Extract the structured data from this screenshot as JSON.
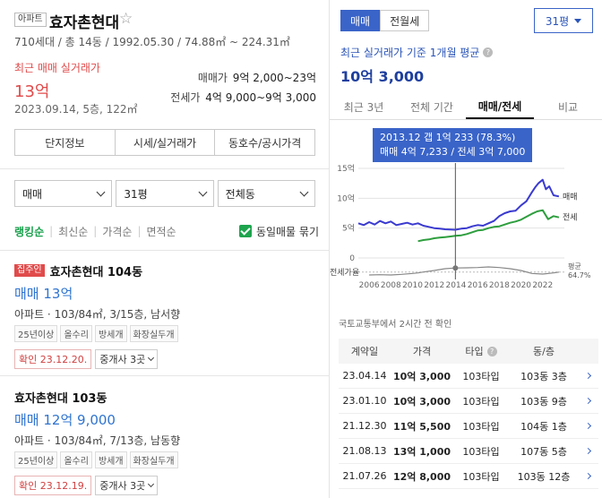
{
  "complex": {
    "badge": "아파트",
    "name": "효자촌현대",
    "info": "710세대 / 총 14동 / 1992.05.30 / 74.88㎡ ~ 224.31㎡",
    "recent_label": "최근 매매 실거래가",
    "recent_price": "13억",
    "recent_date": "2023.09.14, 5층, 122㎡",
    "sale_range_label": "매매가",
    "sale_range": "9억 2,000~23억",
    "jeonse_range_label": "전세가",
    "jeonse_range": "4억 9,000~9억 3,000"
  },
  "tabs": [
    "단지정보",
    "시세/실거래가",
    "동호수/공시가격"
  ],
  "filters": [
    "매매",
    "31평",
    "전체동"
  ],
  "sort": [
    "랭킹순",
    "최신순",
    "가격순",
    "면적순"
  ],
  "same_listing_label": "동일매물 묶기",
  "listings": [
    {
      "owner_tag": "집주인",
      "name": "효자촌현대 104동",
      "price": "매매 13억",
      "spec": "아파트 · 103/84㎡, 3/15층, 남서향",
      "tags": [
        "25년이상",
        "올수리",
        "방세개",
        "화장실두개"
      ],
      "confirm": "확인 23.12.20.",
      "agents": "중개사 3곳"
    },
    {
      "owner_tag": "",
      "name": "효자촌현대 103동",
      "price": "매매 12억 9,000",
      "spec": "아파트 · 103/84㎡, 7/13층, 남동향",
      "tags": [
        "25년이상",
        "올수리",
        "방세개",
        "화장실두개"
      ],
      "confirm": "확인 23.12.19.",
      "agents": "중개사 3곳"
    }
  ],
  "right": {
    "toggle": [
      "매매",
      "전월세"
    ],
    "pyeong": "31평",
    "avg_label": "최근 실거래가 기준 1개월 평균",
    "avg_price": "10억 3,000",
    "period_tabs": [
      "최근 3년",
      "전체 기간",
      "매매/전세",
      "비교"
    ],
    "tooltip_line1": "2013.12  갭 1억 233 (78.3%)",
    "tooltip_line2": "매매 4억 7,233 / 전세 3억 7,000",
    "source": "국토교통부에서 2시간 전 확인",
    "table_headers": [
      "계약일",
      "가격",
      "타입",
      "동/층"
    ],
    "trades": [
      {
        "date": "23.04.14",
        "price": "10억 3,000",
        "type": "103타입",
        "floor": "103동 3층"
      },
      {
        "date": "23.01.10",
        "price": "10억 3,000",
        "type": "103타입",
        "floor": "103동 9층"
      },
      {
        "date": "21.12.30",
        "price": "11억 5,500",
        "type": "103타입",
        "floor": "104동 1층"
      },
      {
        "date": "21.08.13",
        "price": "13억 1,000",
        "type": "103타입",
        "floor": "107동 5층"
      },
      {
        "date": "21.07.26",
        "price": "12억 8,000",
        "type": "103타입",
        "floor": "103동 12층"
      }
    ]
  },
  "chart_data": {
    "type": "line",
    "y_ticks": [
      "15억",
      "10억",
      "5억",
      "0"
    ],
    "ylim": [
      0,
      15
    ],
    "x_ticks": [
      "2006",
      "2008",
      "2010",
      "2012",
      "2014",
      "2016",
      "2018",
      "2020",
      "2022"
    ],
    "xlim": [
      2005.0,
      2024.0
    ],
    "series": [
      {
        "name": "매매",
        "color": "#3a3ad0",
        "x": [
          2005.0,
          2005.5,
          2006.0,
          2006.5,
          2007.0,
          2007.5,
          2008.0,
          2008.5,
          2009.0,
          2009.5,
          2010.0,
          2010.5,
          2011.0,
          2011.5,
          2012.0,
          2012.5,
          2013.0,
          2013.5,
          2013.95,
          2014.5,
          2015.0,
          2015.5,
          2016.0,
          2016.5,
          2017.0,
          2017.5,
          2018.0,
          2018.5,
          2019.0,
          2019.5,
          2020.0,
          2020.5,
          2021.0,
          2021.3,
          2021.6,
          2022.0,
          2022.3,
          2022.6,
          2023.0,
          2023.5
        ],
        "y": [
          5.8,
          5.5,
          6.0,
          5.6,
          6.2,
          5.8,
          6.1,
          5.5,
          5.7,
          5.9,
          5.6,
          5.8,
          5.4,
          5.2,
          5.0,
          4.9,
          4.8,
          4.75,
          4.72,
          4.9,
          5.0,
          5.3,
          5.5,
          5.4,
          5.8,
          6.2,
          7.0,
          7.5,
          7.8,
          7.9,
          8.8,
          9.5,
          11.0,
          11.8,
          12.5,
          13.1,
          11.5,
          12.0,
          10.5,
          10.3
        ]
      },
      {
        "name": "전세",
        "color": "#2e9e3e",
        "x": [
          2010.5,
          2011.0,
          2011.5,
          2012.0,
          2012.5,
          2013.0,
          2013.5,
          2013.95,
          2014.5,
          2015.0,
          2015.5,
          2016.0,
          2016.5,
          2017.0,
          2017.5,
          2018.0,
          2018.5,
          2019.0,
          2019.5,
          2020.0,
          2020.5,
          2021.0,
          2021.5,
          2022.0,
          2022.5,
          2023.0,
          2023.5
        ],
        "y": [
          2.8,
          3.0,
          3.1,
          3.3,
          3.4,
          3.5,
          3.6,
          3.7,
          3.8,
          4.0,
          4.3,
          4.6,
          4.7,
          5.0,
          5.2,
          5.3,
          5.6,
          5.9,
          6.1,
          6.4,
          6.9,
          7.4,
          7.8,
          8.0,
          6.5,
          7.0,
          6.8
        ]
      }
    ],
    "gap_rate_label": "전세가율",
    "gap_rate_note_line1": "평균",
    "gap_rate_note_line2": "64.7%",
    "gap_rate": {
      "name": "전세가율",
      "color": "#888888",
      "x": [
        2006.0,
        2007.0,
        2008.0,
        2009.0,
        2010.0,
        2010.5,
        2011.0,
        2012.0,
        2013.0,
        2013.95,
        2015.0,
        2016.0,
        2017.0,
        2018.0,
        2019.0,
        2020.0,
        2021.0,
        2022.0,
        2023.0,
        2023.5
      ],
      "y": [
        55,
        56,
        55,
        57,
        60,
        62,
        65,
        70,
        76,
        78.3,
        79,
        80,
        82,
        80,
        76,
        70,
        60,
        58,
        62,
        64.7
      ]
    },
    "highlight_x": 2013.95,
    "legend": "right-end labels"
  }
}
